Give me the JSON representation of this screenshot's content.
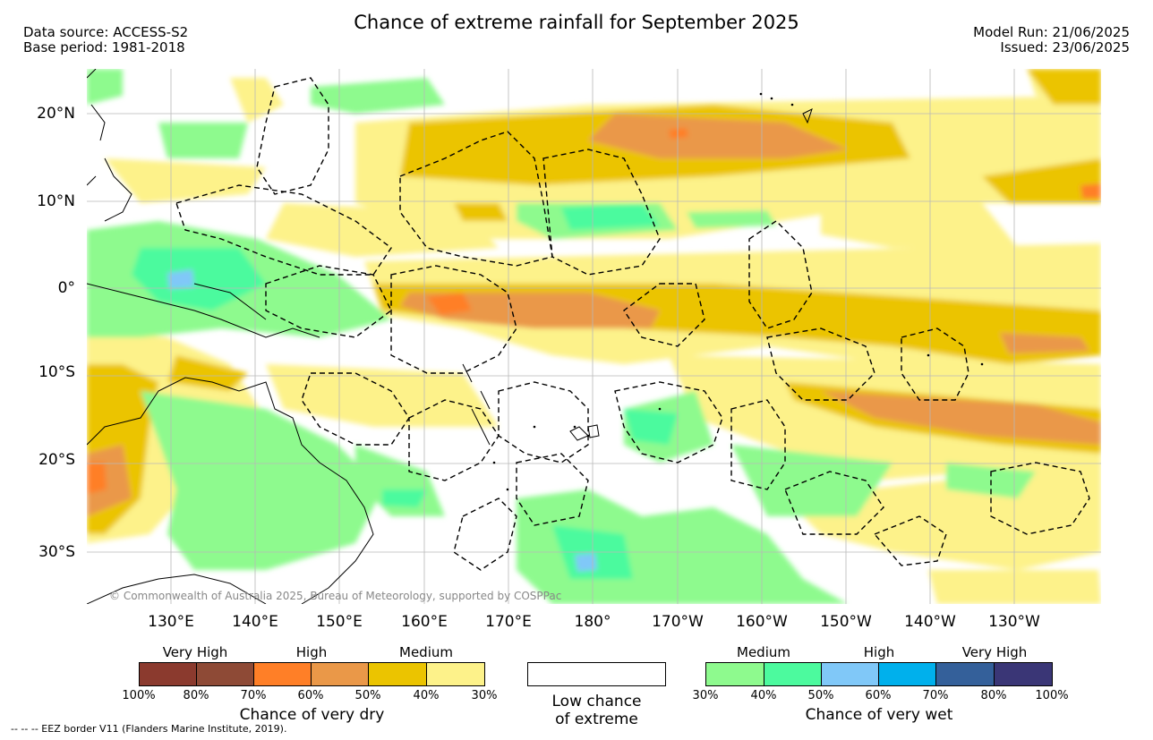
{
  "header": {
    "title": "Chance of extreme rainfall for September 2025",
    "data_source": "Data source: ACCESS-S2",
    "base_period": "Base period: 1981-2018",
    "model_run": "Model Run: 21/06/2025",
    "issued": "Issued: 23/06/2025"
  },
  "map": {
    "lat_labels": [
      "20°N",
      "10°N",
      "0°",
      "10°S",
      "20°S",
      "30°S"
    ],
    "lon_labels": [
      "130°E",
      "140°E",
      "150°E",
      "160°E",
      "170°E",
      "180°",
      "170°W",
      "160°W",
      "150°W",
      "140°W",
      "130°W"
    ],
    "credit": "© Commonwealth of Australia 2025, Bureau of Meteorology, supported by COSPPac",
    "colors": {
      "dry_very_high_1": "#8b3a2e",
      "dry_very_high_2": "#8e4a36",
      "dry_high_1": "#ff7f27",
      "dry_high_2": "#ea9848",
      "dry_medium_1": "#ebc400",
      "dry_medium_2": "#fdf28a",
      "wet_medium_1": "#8efa8e",
      "wet_medium_2": "#4cfa9e",
      "wet_high_1": "#80c8f8",
      "wet_high_2": "#00b0ec",
      "wet_very_high_1": "#34609a",
      "wet_very_high_2": "#3a3676"
    }
  },
  "legend": {
    "dry": {
      "categories": [
        "Very High",
        "High",
        "Medium"
      ],
      "ticks": [
        "100%",
        "80%",
        "70%",
        "60%",
        "50%",
        "40%",
        "30%"
      ],
      "title": "Chance of very dry"
    },
    "neutral": {
      "line1": "Low chance",
      "line2": "of extreme"
    },
    "wet": {
      "categories": [
        "Medium",
        "High",
        "Very High"
      ],
      "ticks": [
        "30%",
        "40%",
        "50%",
        "60%",
        "70%",
        "80%",
        "100%"
      ],
      "title": "Chance of very wet"
    },
    "footnote": "--  --  -- EEZ border V11 (Flanders Marine Institute, 2019)."
  }
}
